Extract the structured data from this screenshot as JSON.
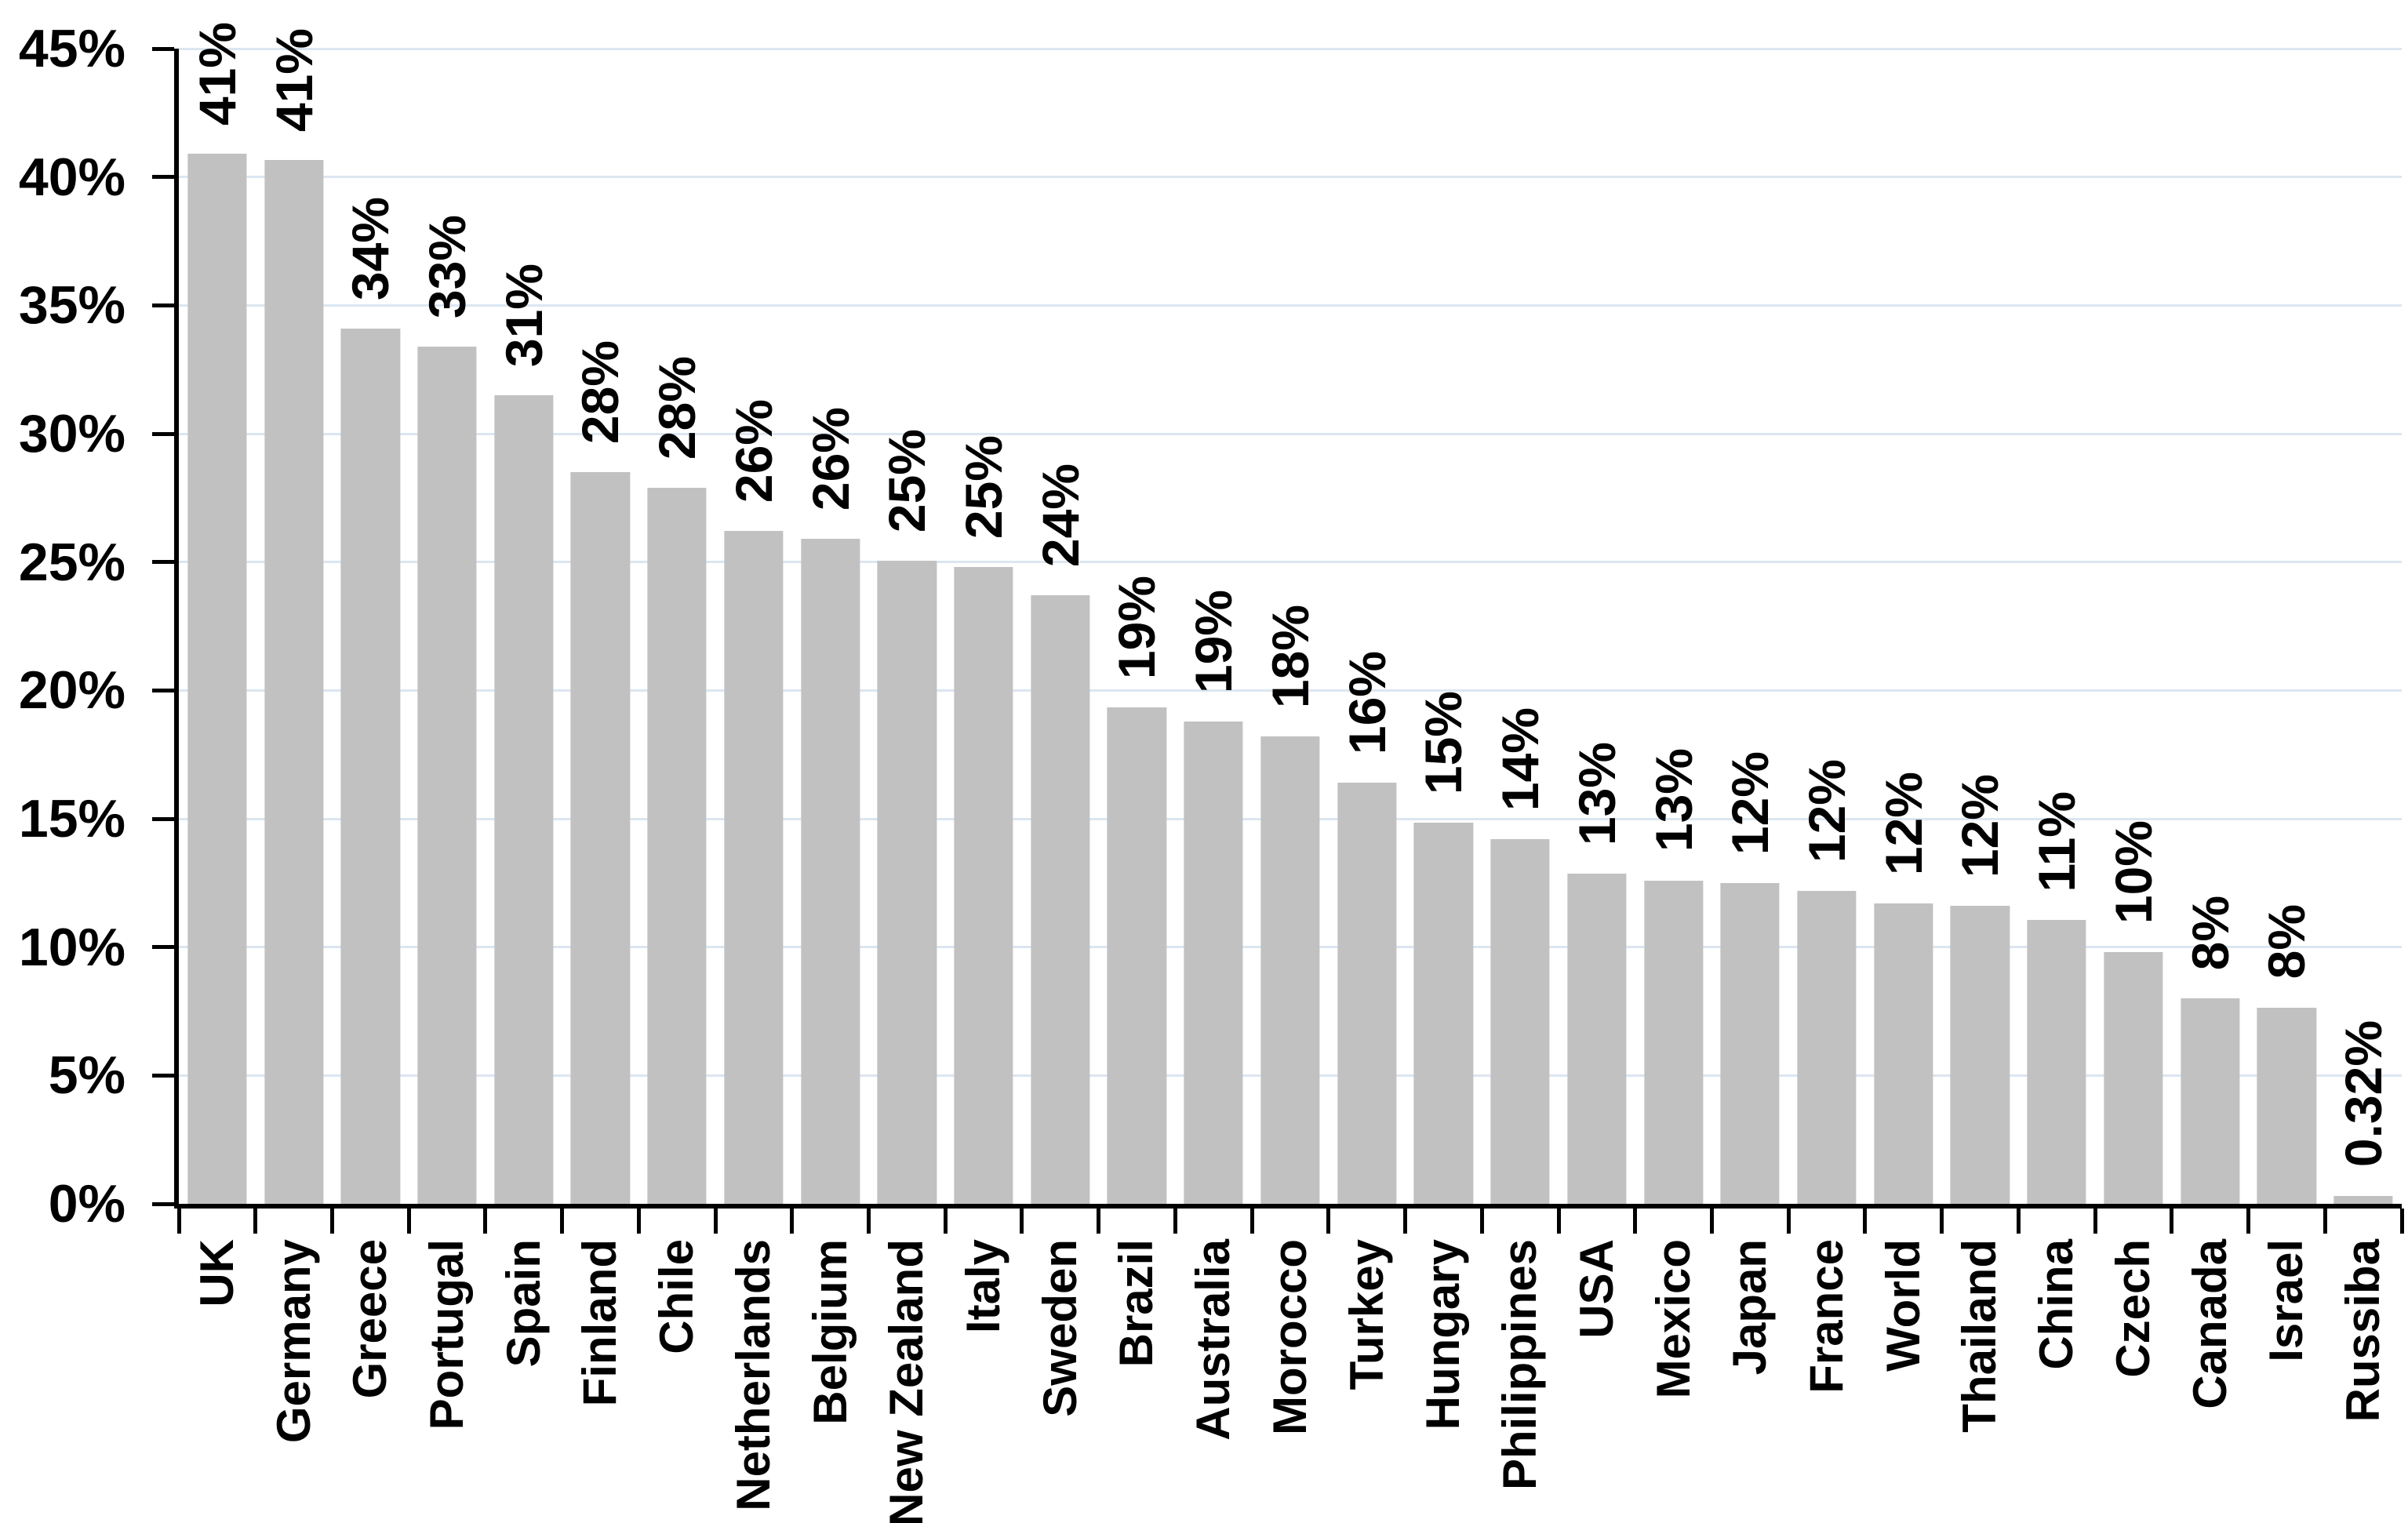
{
  "chart_data": {
    "type": "bar",
    "title": "",
    "xlabel": "",
    "ylabel": "",
    "ylim": [
      0,
      45
    ],
    "grid": "horizontal-light-blue",
    "bar_color": "#c1c1c1",
    "gridline_color": "#dce6f1",
    "axis_color": "#000000",
    "label_rotation_degrees": 90,
    "y_ticks": [
      "0%",
      "5%",
      "10%",
      "15%",
      "20%",
      "25%",
      "30%",
      "35%",
      "40%",
      "45%"
    ],
    "categories": [
      "UK",
      "Germany",
      "Greece",
      "Portugal",
      "Spain",
      "Finland",
      "Chile",
      "Netherlands",
      "Belgium",
      "New Zealand",
      "Italy",
      "Sweden",
      "Brazil",
      "Australia",
      "Morocco",
      "Turkey",
      "Hungary",
      "Philippines",
      "USA",
      "Mexico",
      "Japan",
      "France",
      "World",
      "Thailand",
      "China",
      "Czech",
      "Canada",
      "Israel",
      "Russiba"
    ],
    "data_labels": [
      "41%",
      "41%",
      "34%",
      "33%",
      "31%",
      "28%",
      "28%",
      "26%",
      "26%",
      "25%",
      "25%",
      "24%",
      "19%",
      "19%",
      "18%",
      "16%",
      "15%",
      "14%",
      "13%",
      "13%",
      "12%",
      "12%",
      "12%",
      "12%",
      "11%",
      "10%",
      "8%",
      "8%",
      "0.32%"
    ],
    "values": [
      40.9,
      40.65,
      34.1,
      33.4,
      31.5,
      28.5,
      27.9,
      26.2,
      25.9,
      25.05,
      24.8,
      23.7,
      19.35,
      18.8,
      18.2,
      16.4,
      14.85,
      14.2,
      12.85,
      12.6,
      12.5,
      12.2,
      11.7,
      11.6,
      11.05,
      9.8,
      8.0,
      7.65,
      0.32
    ]
  }
}
